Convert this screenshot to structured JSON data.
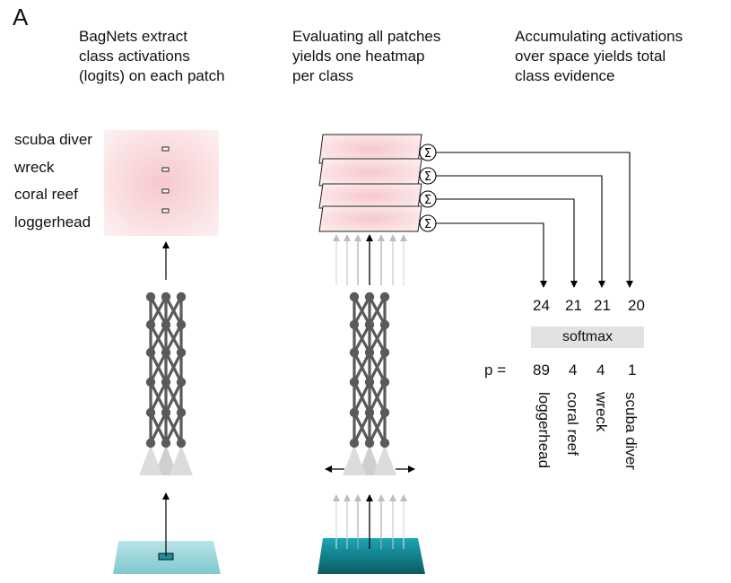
{
  "panel_letter": "A",
  "columns": [
    {
      "title": "BagNets extract\nclass activations\n(logits) on each patch"
    },
    {
      "title": "Evaluating all patches\nyields one heatmap\nper class"
    },
    {
      "title": "Accumulating activations\nover space yields total\nclass evidence"
    }
  ],
  "class_labels": [
    "scuba diver",
    "wreck",
    "coral reef",
    "loggerhead"
  ],
  "sum_symbol": "Σ",
  "logits": [
    "24",
    "21",
    "21",
    "20"
  ],
  "softmax_label": "softmax",
  "prob_prefix": "p =",
  "probabilities": [
    "89",
    "4",
    "4",
    "1"
  ],
  "output_classes": [
    "loggerhead",
    "coral reef",
    "wreck",
    "scuba diver"
  ],
  "colors": {
    "network": "#5a5a5a",
    "heatmap_red": "#e8838b",
    "water": "#8fd3da",
    "water_dark": "#138c9c",
    "softmax_bg": "#e2e2e2"
  }
}
